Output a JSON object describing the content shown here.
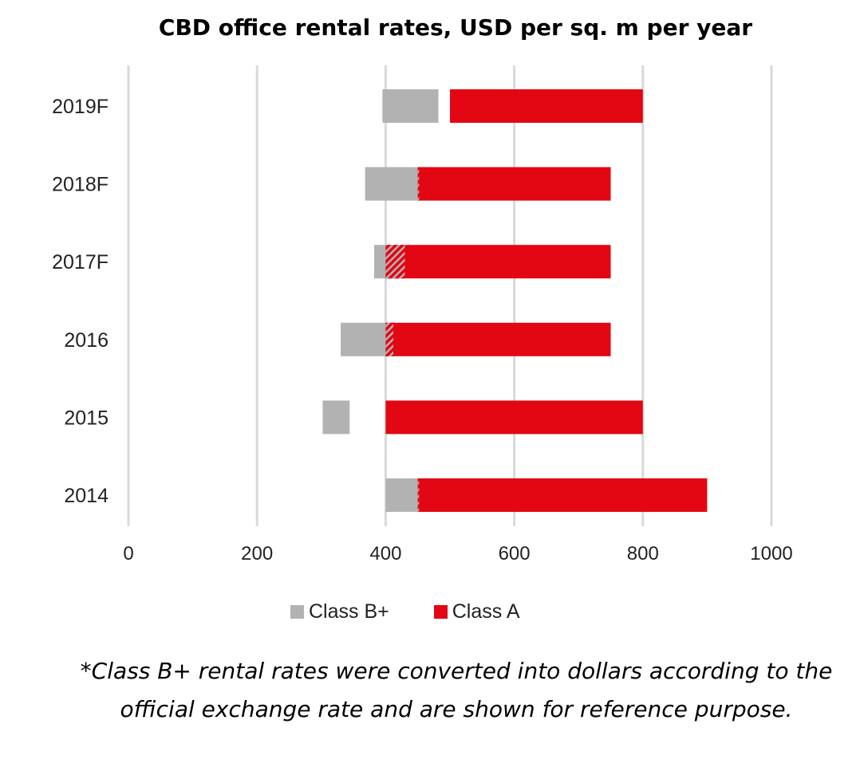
{
  "chart_data": {
    "type": "bar",
    "orientation": "horizontal",
    "stacked": "floating-range",
    "title": "CBD office rental rates, USD per sq. m per year",
    "xlabel": "",
    "ylabel": "",
    "xlim": [
      0,
      1000
    ],
    "xticks": [
      "0",
      "200",
      "400",
      "600",
      "800",
      "1000"
    ],
    "grid": true,
    "legend_position": "bottom",
    "categories": [
      "2019F",
      "2018F",
      "2017F",
      "2016",
      "2015",
      "2014"
    ],
    "series": [
      {
        "name": "Class B+",
        "color": "#b2b2b2",
        "ranges": [
          [
            395,
            482
          ],
          [
            368,
            452
          ],
          [
            382,
            430
          ],
          [
            330,
            412
          ],
          [
            302,
            344
          ],
          [
            400,
            452
          ]
        ]
      },
      {
        "name": "Class A",
        "color": "#e30613",
        "ranges": [
          [
            500,
            800
          ],
          [
            450,
            750
          ],
          [
            400,
            750
          ],
          [
            400,
            750
          ],
          [
            400,
            800
          ],
          [
            450,
            900
          ]
        ]
      }
    ]
  },
  "legend": {
    "class_b": "Class B+",
    "class_a": "Class A"
  },
  "footnote": {
    "line1": "*Class B+ rental rates were converted into dollars according to the",
    "line2": "official exchange rate and are shown for reference purpose."
  }
}
